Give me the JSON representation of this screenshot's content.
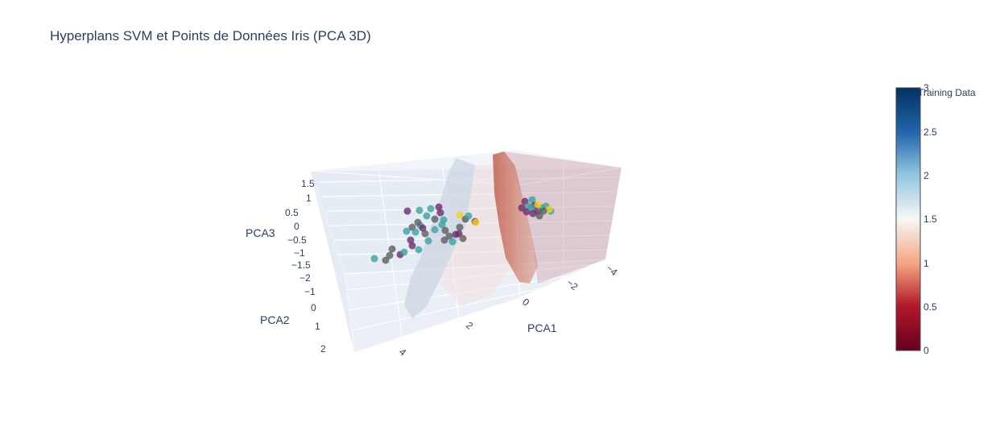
{
  "chart_data": {
    "type": "scatter3d",
    "title": "Hyperplans SVM et Points de Données Iris (PCA 3D)",
    "axes": {
      "x": {
        "label": "PCA1",
        "ticks": [
          "4",
          "2",
          "0",
          "−2",
          "−4"
        ]
      },
      "y": {
        "label": "PCA2",
        "ticks": [
          "−2",
          "−1",
          "0",
          "1",
          "2"
        ]
      },
      "z": {
        "label": "PCA3",
        "ticks": [
          "1.5",
          "1",
          "0.5",
          "0",
          "−0.5",
          "−1",
          "−1.5"
        ]
      }
    },
    "colorbar": {
      "title": "Training Data",
      "colorscale": "RdBu",
      "range": [
        0,
        3
      ],
      "ticks": [
        "3",
        "2.5",
        "2",
        "1.5",
        "1",
        "0.5",
        "0"
      ]
    },
    "surfaces": [
      {
        "name": "hyperplane-class-0",
        "color": "#c0604d"
      },
      {
        "name": "hyperplane-class-1",
        "color": "#d0d8e4"
      }
    ],
    "point_colors": {
      "class0": "#6b2d6e",
      "class1": "#3ba3a0",
      "class2": "#5e5e5e",
      "highlight": "#f2d21b"
    }
  }
}
